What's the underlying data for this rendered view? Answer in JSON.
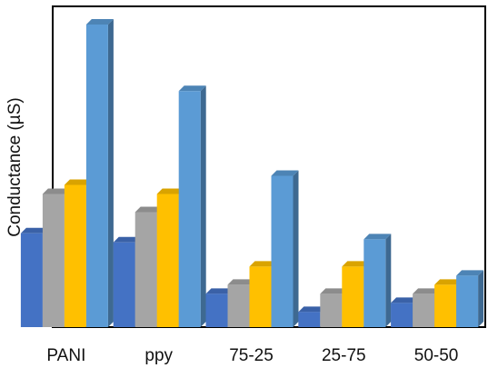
{
  "chart_data": {
    "type": "bar",
    "style": "3d-clustered-column",
    "categories": [
      "PANI",
      "ppy",
      "75-25",
      "25-75",
      "50-50"
    ],
    "ylabel": "Conductance (µS)",
    "xlabel": "",
    "title": "",
    "ylim": [
      0,
      100
    ],
    "grid": false,
    "legend": "none",
    "series": [
      {
        "color": "#4472C4",
        "values": [
          31,
          28,
          11,
          5,
          8
        ]
      },
      {
        "color": "#A5A5A5",
        "values": [
          44,
          38,
          14,
          11,
          11
        ]
      },
      {
        "color": "#FFC000",
        "values": [
          47,
          44,
          20,
          20,
          14
        ]
      },
      {
        "color": "#5B9BD5",
        "values": [
          100,
          78,
          50,
          29,
          17
        ]
      }
    ]
  }
}
